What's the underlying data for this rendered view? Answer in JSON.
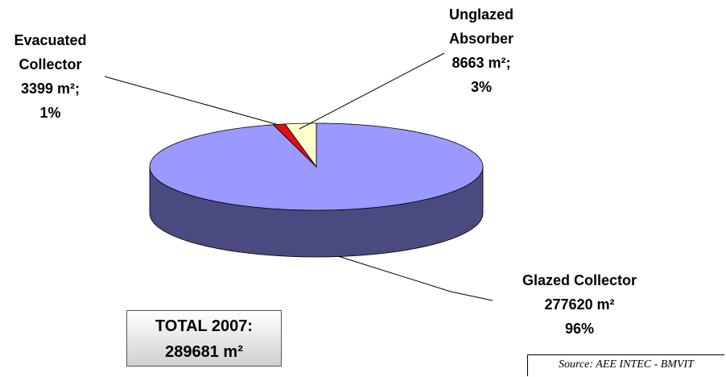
{
  "chart_data": {
    "type": "pie3d",
    "categories": [
      "Glazed Collector",
      "Evacuated Collector",
      "Unglazed Absorber"
    ],
    "values": [
      277620,
      3399,
      8663
    ],
    "value_labels": [
      "277620 m²",
      "3399 m²;",
      "8663 m²;"
    ],
    "percent_labels": [
      "96%",
      "1%",
      "3%"
    ],
    "colors": [
      "#9999ff",
      "#e01010",
      "#ffffcc"
    ],
    "side_colors": [
      "#4a4a80",
      "#800000",
      "#999970"
    ],
    "total_label": "TOTAL 2007:",
    "total_value": "289681 m²",
    "source": "Source: AEE INTEC - BMVIT"
  }
}
